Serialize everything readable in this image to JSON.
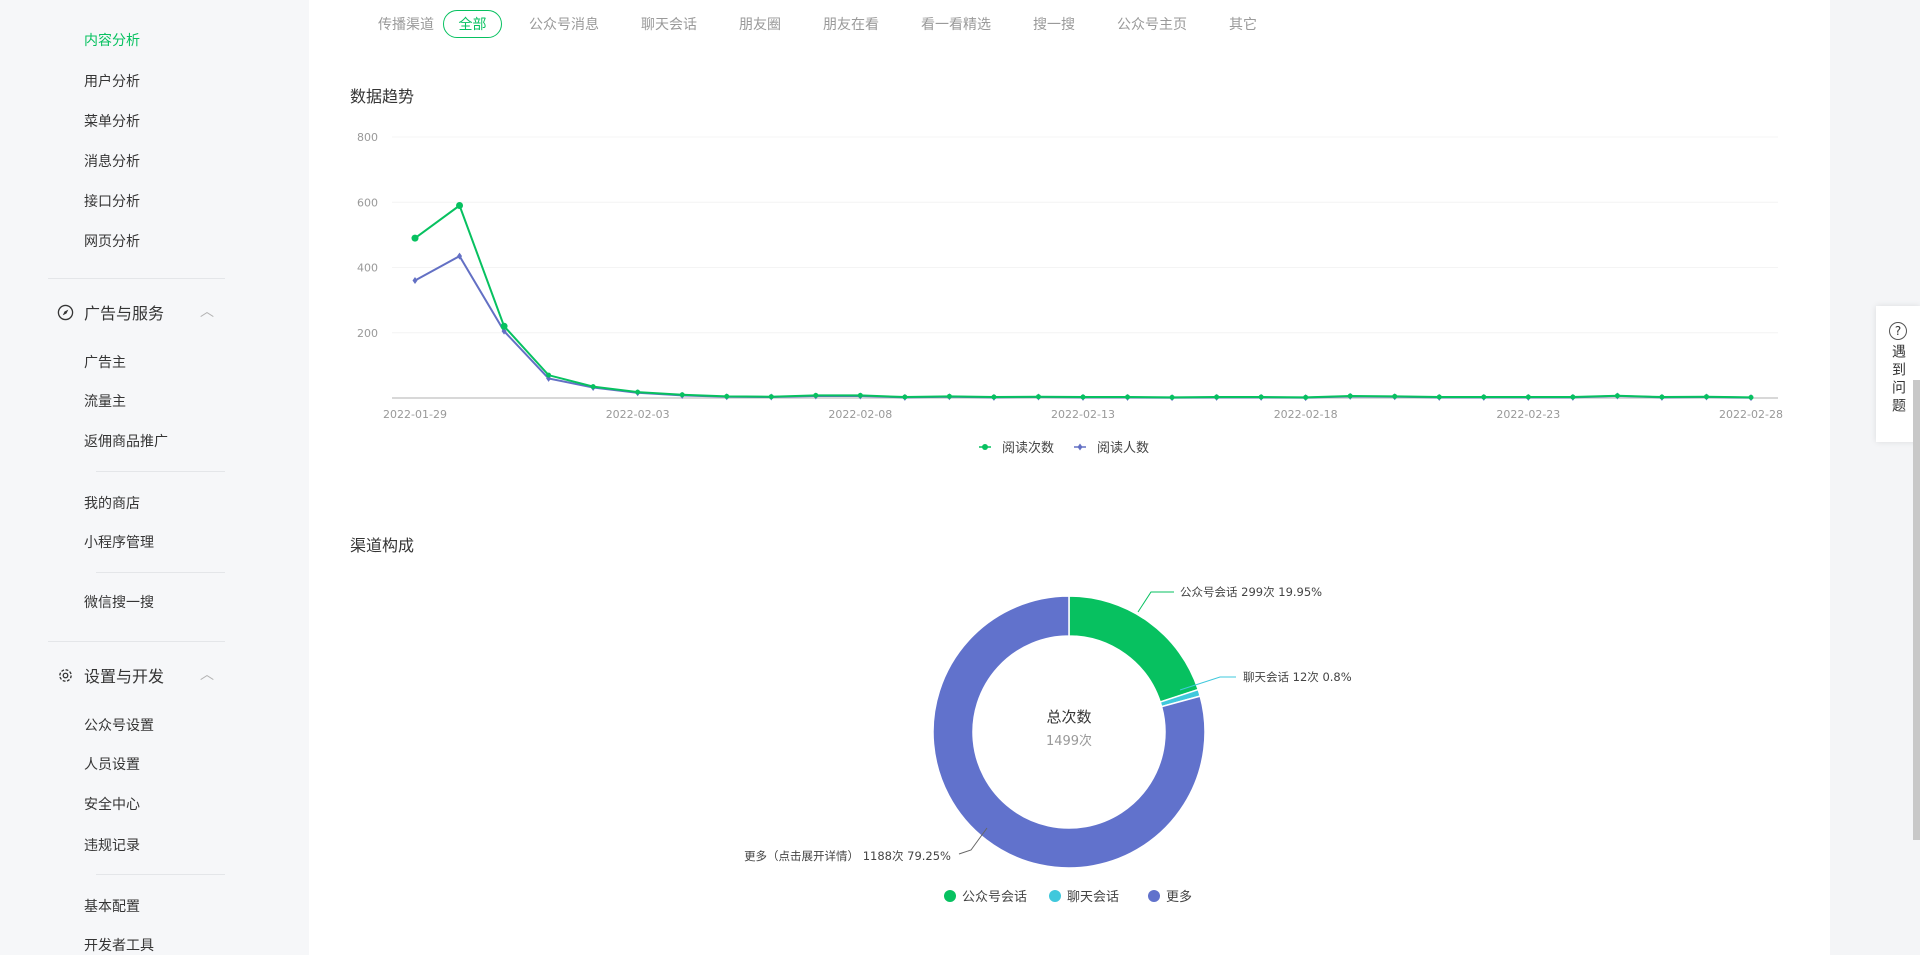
{
  "sidebar": {
    "analysis_items": [
      "内容分析",
      "用户分析",
      "菜单分析",
      "消息分析",
      "接口分析",
      "网页分析"
    ],
    "ads_group": {
      "label": "广告与服务",
      "items": [
        "广告主",
        "流量主",
        "返佣商品推广"
      ]
    },
    "misc_items": [
      "我的商店",
      "小程序管理",
      "微信搜一搜"
    ],
    "settings_group": {
      "label": "设置与开发",
      "items": [
        "公众号设置",
        "人员设置",
        "安全中心",
        "违规记录",
        "基本配置",
        "开发者工具"
      ]
    }
  },
  "filter": {
    "label": "传播渠道",
    "tabs": [
      "全部",
      "公众号消息",
      "聊天会话",
      "朋友圈",
      "朋友在看",
      "看一看精选",
      "搜一搜",
      "公众号主页",
      "其它"
    ],
    "active": "全部"
  },
  "help": {
    "label": "遇到问题"
  },
  "colors": {
    "accent": "#07c160",
    "series2": "#6370c4",
    "cyan": "#3fc8dc",
    "blue": "#6172cc"
  },
  "chart_data": [
    {
      "type": "line",
      "title": "数据趋势",
      "ylim": [
        0,
        800
      ],
      "yticks": [
        "200",
        "400",
        "600",
        "800"
      ],
      "xticks": [
        "2022-01-29",
        "2022-02-03",
        "2022-02-08",
        "2022-02-13",
        "2022-02-18",
        "2022-02-23",
        "2022-02-28"
      ],
      "x_start": "2022-01-29",
      "x_end": "2022-02-28",
      "series": [
        {
          "name": "阅读次数",
          "color": "#07c160",
          "values": [
            490,
            590,
            220,
            70,
            35,
            18,
            10,
            5,
            4,
            8,
            8,
            3,
            5,
            3,
            4,
            3,
            3,
            2,
            3,
            3,
            2,
            6,
            5,
            3,
            3,
            3,
            3,
            7,
            3,
            4,
            2
          ]
        },
        {
          "name": "阅读人数",
          "color": "#6370c4",
          "values": [
            360,
            435,
            205,
            60,
            32,
            16,
            8,
            4,
            3,
            6,
            6,
            2,
            4,
            2,
            3,
            2,
            2,
            1,
            2,
            2,
            1,
            5,
            4,
            2,
            2,
            2,
            2,
            6,
            2,
            3,
            1
          ]
        }
      ]
    },
    {
      "type": "pie",
      "title": "渠道构成",
      "center_label": "总次数",
      "center_value": "1499次",
      "slices": [
        {
          "name": "公众号会话",
          "value": 299,
          "pct": "19.95%",
          "label": "公众号会话 299次 19.95%",
          "color": "#07c160"
        },
        {
          "name": "聊天会话",
          "value": 12,
          "pct": "0.8%",
          "label": "聊天会话 12次 0.8%",
          "color": "#3fc8dc"
        },
        {
          "name": "更多",
          "value": 1188,
          "pct": "79.25%",
          "label": "更多（点击展开详情） 1188次 79.25%",
          "color": "#6172cc"
        }
      ]
    }
  ]
}
